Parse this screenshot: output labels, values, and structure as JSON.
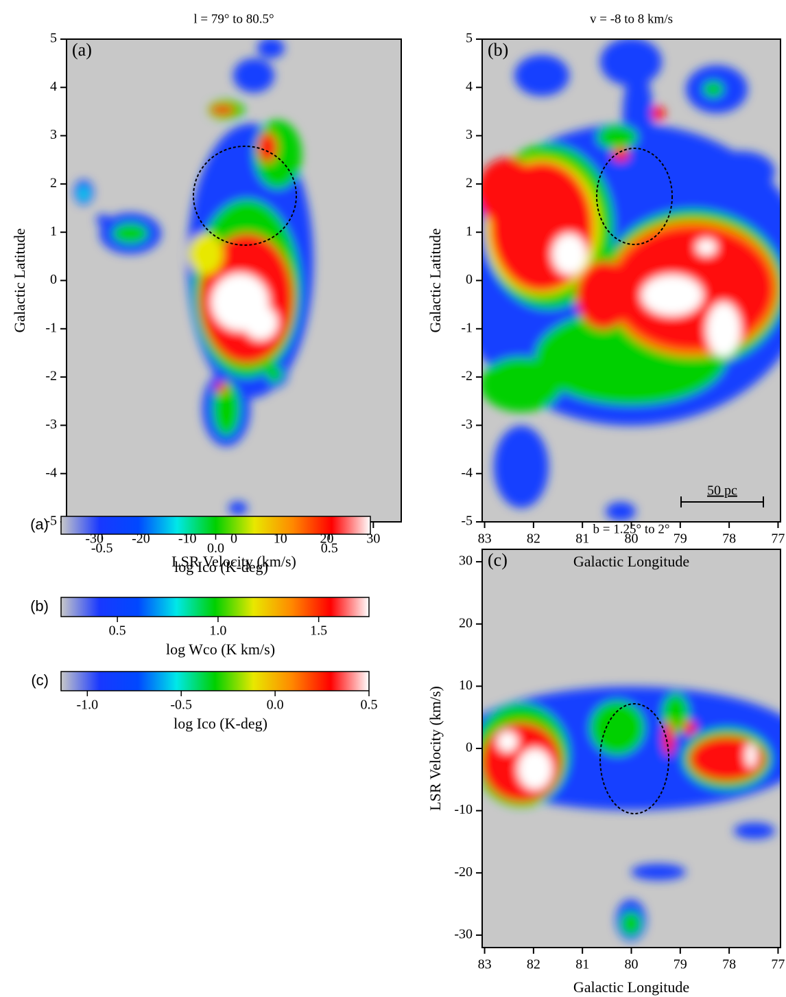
{
  "chart_data": [
    {
      "type": "heatmap",
      "panel": "(a)",
      "title": "l = 79° to 80.5°",
      "x_label": "LSR Velocity (km/s)",
      "y_label": "Galactic Latitude",
      "xlim": [
        -36,
        36
      ],
      "xticks": [
        -30,
        -20,
        -10,
        0,
        10,
        20,
        30
      ],
      "ylim": [
        -5,
        5
      ],
      "yticks": [
        -5,
        -4,
        -3,
        -2,
        -1,
        0,
        1,
        2,
        3,
        4,
        5
      ]
    },
    {
      "type": "heatmap",
      "panel": "(b)",
      "title": "v = -8 to 8 km/s",
      "x_label": "Galactic Longitude",
      "y_label": "Galactic Latitude",
      "xlim": [
        83.05,
        76.95
      ],
      "xticks": [
        83,
        82,
        81,
        80,
        79,
        78,
        77
      ],
      "ylim": [
        -5,
        5
      ],
      "yticks": [
        -5,
        -4,
        -3,
        -2,
        -1,
        0,
        1,
        2,
        3,
        4,
        5
      ],
      "annotation": "50 pc"
    },
    {
      "type": "heatmap",
      "panel": "(c)",
      "title": "b = 1.25° to 2°",
      "x_label": "Galactic Longitude",
      "y_label": "LSR Velocity (km/s)",
      "xlim": [
        83.05,
        76.95
      ],
      "xticks": [
        83,
        82,
        81,
        80,
        79,
        78,
        77
      ],
      "ylim": [
        -32,
        32
      ],
      "yticks": [
        -30,
        -20,
        -10,
        0,
        10,
        20,
        30
      ]
    },
    {
      "type": "colorbar",
      "name": "(a)",
      "label": "log Ico (K-deg)",
      "lim": [
        -0.68,
        0.68
      ],
      "ticks": [
        -0.5,
        {
          "value": 0,
          "label": "0.0"
        },
        0.5
      ],
      "colors": [
        "#c8c8c8",
        "#1838ff",
        "#0048ff",
        "#00e8e8",
        "#00d000",
        "#e8e800",
        "#ff8800",
        "#ff0000",
        "#ffffff"
      ]
    },
    {
      "type": "colorbar",
      "name": "(b)",
      "label": "log Wco (K km/s)",
      "lim": [
        0.22,
        1.75
      ],
      "ticks": [
        0.5,
        {
          "value": 1,
          "label": "1.0"
        },
        1.5
      ],
      "colors": [
        "#c8c8c8",
        "#1838ff",
        "#0048ff",
        "#00e8e8",
        "#00d000",
        "#e8e800",
        "#ff8800",
        "#ff0000",
        "#ffffff"
      ]
    },
    {
      "type": "colorbar",
      "name": "(c)",
      "label": "log Ico (K-deg)",
      "lim": [
        -1.14,
        0.5
      ],
      "ticks": [
        {
          "value": -1,
          "label": "-1.0"
        },
        -0.5,
        {
          "value": 0,
          "label": "0.0"
        },
        0.5
      ],
      "colors": [
        "#c8c8c8",
        "#1838ff",
        "#0048ff",
        "#00e8e8",
        "#00d000",
        "#e8e800",
        "#ff8800",
        "#ff0000",
        "#ffffff"
      ]
    }
  ]
}
